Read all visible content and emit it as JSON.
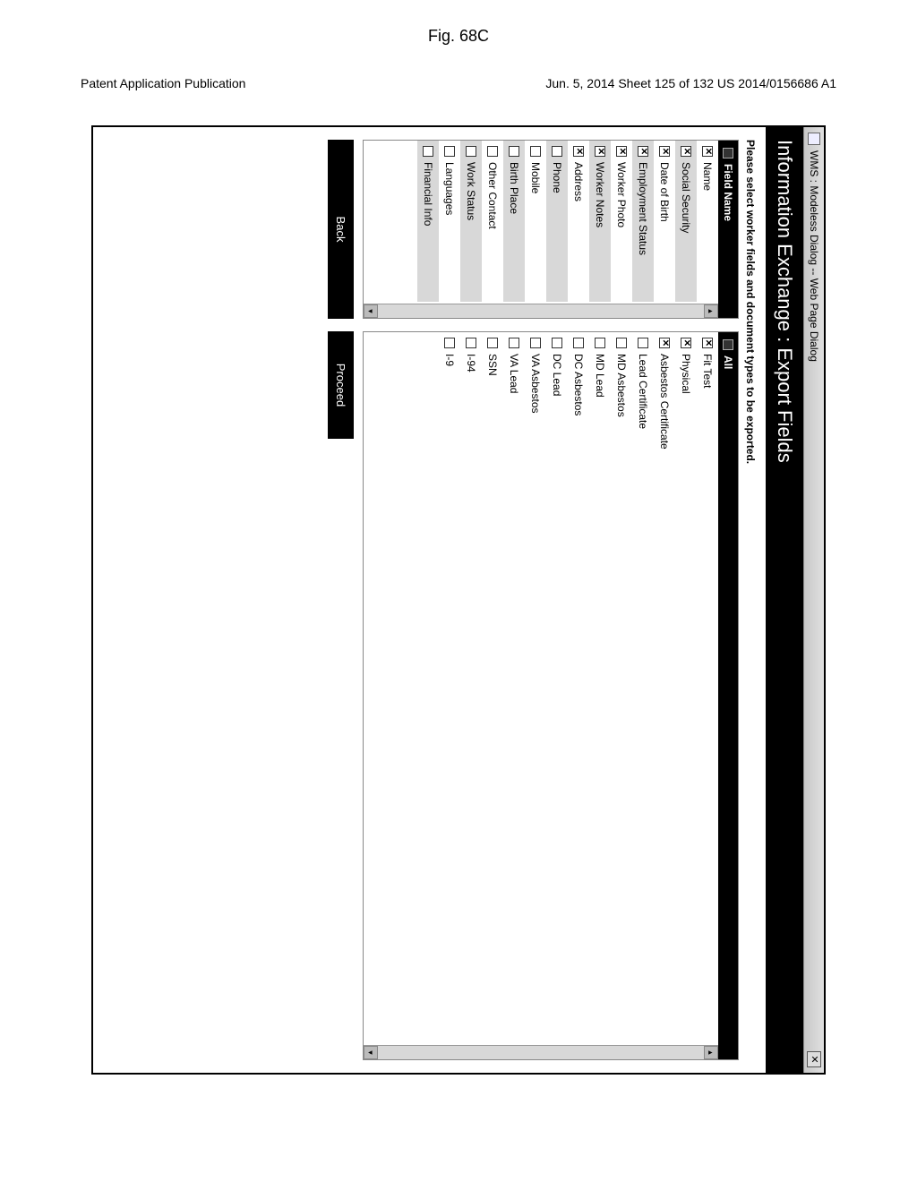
{
  "page": {
    "header_left": "Patent Application Publication",
    "header_right": "Jun. 5, 2014   Sheet 125 of 132   US 2014/0156686 A1",
    "figure_label": "Fig. 68C"
  },
  "dialog": {
    "title": "WMS : Modeless Dialog -- Web Page Dialog",
    "banner": "Information Exchange : Export Fields",
    "instruction": "Please select worker fields and document types to be exported."
  },
  "left_list": {
    "header": "Field Name",
    "items": [
      {
        "label": "Name",
        "checked": true,
        "shaded": false
      },
      {
        "label": "Social Security",
        "checked": true,
        "shaded": true
      },
      {
        "label": "Date of Birth",
        "checked": true,
        "shaded": false
      },
      {
        "label": "Employment Status",
        "checked": true,
        "shaded": true
      },
      {
        "label": "Worker Photo",
        "checked": true,
        "shaded": false
      },
      {
        "label": "Worker Notes",
        "checked": true,
        "shaded": true
      },
      {
        "label": "Address",
        "checked": true,
        "shaded": false
      },
      {
        "label": "Phone",
        "checked": false,
        "shaded": true
      },
      {
        "label": "Mobile",
        "checked": false,
        "shaded": false
      },
      {
        "label": "Birth Place",
        "checked": false,
        "shaded": true
      },
      {
        "label": "Other Contact",
        "checked": false,
        "shaded": false
      },
      {
        "label": "Work Status",
        "checked": false,
        "shaded": true
      },
      {
        "label": "Languages",
        "checked": false,
        "shaded": false
      },
      {
        "label": "Financial Info",
        "checked": false,
        "shaded": true
      }
    ]
  },
  "right_list": {
    "header": "All",
    "expand_symbol": "«",
    "items": [
      {
        "label": "Fit Test",
        "checked": true
      },
      {
        "label": "Physical",
        "checked": true
      },
      {
        "label": "Asbestos Certificate",
        "checked": true
      },
      {
        "label": "Lead Certificate",
        "checked": false
      },
      {
        "label": "MD Asbestos",
        "checked": false
      },
      {
        "label": "MD Lead",
        "checked": false
      },
      {
        "label": "DC Asbestos",
        "checked": false
      },
      {
        "label": "DC Lead",
        "checked": false
      },
      {
        "label": "VA Asbestos",
        "checked": false
      },
      {
        "label": "VA Lead",
        "checked": false
      },
      {
        "label": "SSN",
        "checked": false
      },
      {
        "label": "I-94",
        "checked": false
      },
      {
        "label": "I-9",
        "checked": false
      }
    ]
  },
  "buttons": {
    "back": "Back",
    "proceed": "Proceed"
  }
}
